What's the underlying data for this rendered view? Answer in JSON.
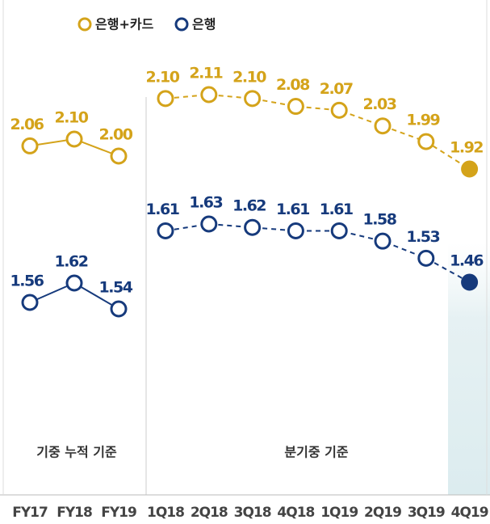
{
  "chart_data": [
    {
      "type": "line",
      "panel_label": "기중 누적 기준",
      "line_style": "solid",
      "categories": [
        "FY17",
        "FY18",
        "FY19"
      ],
      "series": [
        {
          "name": "은행+카드",
          "color": "#d4a31a",
          "values": [
            2.06,
            2.1,
            2.0
          ],
          "value_labels": [
            "2.06",
            "2.10",
            "2.00"
          ]
        },
        {
          "name": "은행",
          "color": "#163a7c",
          "values": [
            1.56,
            1.62,
            1.54
          ]
        }
      ]
    },
    {
      "type": "line",
      "panel_label": "분기중 기준",
      "line_style": "dashed",
      "categories": [
        "1Q18",
        "2Q18",
        "3Q18",
        "4Q18",
        "1Q19",
        "2Q19",
        "3Q19",
        "4Q19"
      ],
      "series": [
        {
          "color": "#d4a31a",
          "values": [
            2.1,
            2.11,
            2.1,
            2.08,
            2.07,
            2.03,
            1.99,
            1.92
          ],
          "value_labels": [
            "2.10",
            "2.11",
            "2.10",
            "2.08",
            "2.07",
            "2.03",
            "1.99",
            "1.92"
          ]
        },
        {
          "color": "#163a7c",
          "values": [
            1.61,
            1.63,
            1.62,
            1.61,
            1.61,
            1.58,
            1.53,
            1.46
          ]
        }
      ]
    }
  ]
}
